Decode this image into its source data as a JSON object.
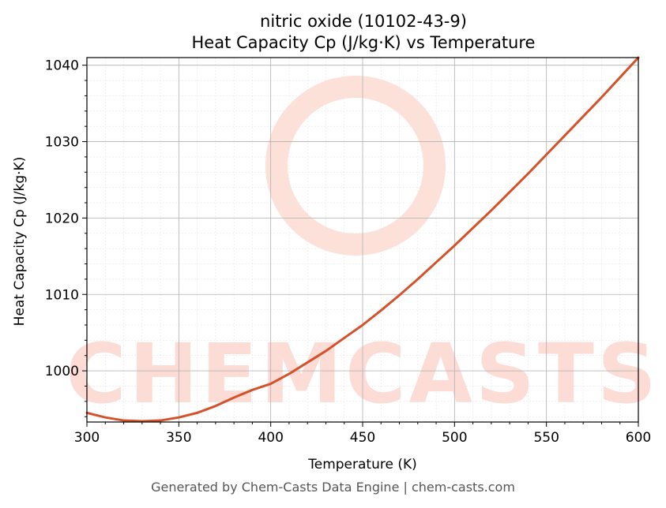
{
  "chart_data": {
    "type": "line",
    "title_line1": "nitric oxide (10102-43-9)",
    "title_line2": "Heat Capacity Cp (J/kg·K) vs Temperature",
    "xlabel": "Temperature (K)",
    "ylabel": "Heat Capacity Cp (J/kg·K)",
    "xlim": [
      300,
      600
    ],
    "ylim": [
      993.3,
      1041.0
    ],
    "xticks": [
      300,
      350,
      400,
      450,
      500,
      550,
      600
    ],
    "yticks": [
      1000,
      1010,
      1020,
      1030,
      1040
    ],
    "grid": true,
    "series": [
      {
        "color": "#d4522a",
        "x": [
          300,
          310,
          320,
          330,
          340,
          350,
          360,
          370,
          380,
          390,
          400,
          410,
          420,
          430,
          440,
          450,
          460,
          470,
          480,
          490,
          500,
          510,
          520,
          530,
          540,
          550,
          560,
          570,
          580,
          590,
          600
        ],
        "y": [
          994.5,
          993.9,
          993.5,
          993.4,
          993.5,
          993.9,
          994.5,
          995.4,
          996.5,
          997.5,
          998.3,
          999.6,
          1001.1,
          1002.6,
          1004.3,
          1006.0,
          1007.9,
          1009.9,
          1012.0,
          1014.2,
          1016.4,
          1018.7,
          1021.0,
          1023.4,
          1025.8,
          1028.3,
          1030.8,
          1033.3,
          1035.8,
          1038.4,
          1041.0
        ]
      }
    ]
  },
  "watermark": {
    "text": "CHEMCASTS",
    "color": "#fcd9d0"
  },
  "footer": "Generated by Chem-Casts Data Engine | chem-casts.com"
}
